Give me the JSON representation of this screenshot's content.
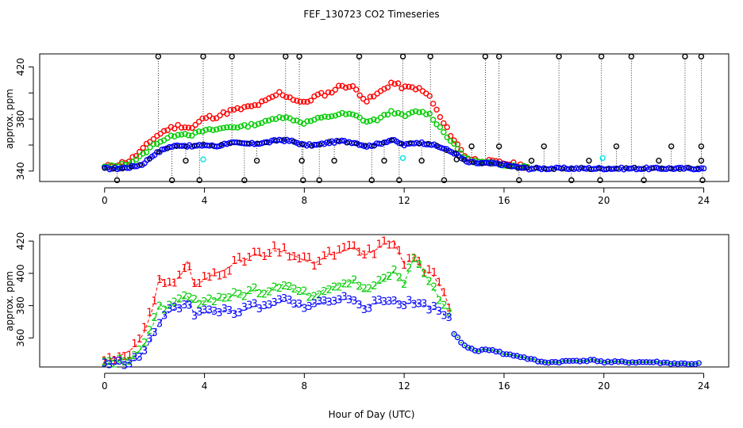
{
  "chart_data": [
    {
      "type": "scatter",
      "title": "FEF_130723  CO2 Timeseries",
      "xlabel": "",
      "ylabel": "approx. ppm",
      "xlim": [
        -2.6,
        25.0
      ],
      "ylim": [
        332,
        430
      ],
      "xticks": [
        0,
        4,
        8,
        12,
        16,
        20,
        24
      ],
      "yticks": [
        340,
        360,
        380,
        400,
        420
      ],
      "ytick_labels": [
        "340",
        "",
        "380",
        "",
        "420"
      ],
      "grid": false,
      "marker": "circle",
      "series": [
        {
          "color": "#000000",
          "note_role": "raw samples, ~every 0.12 h; values around ~341 ppm baseline with frequent spikes to 428 and dips to 333",
          "points_sparse": [
            [
              2.15,
              428
            ],
            [
              3.95,
              428
            ],
            [
              5.1,
              428
            ],
            [
              7.25,
              428
            ],
            [
              7.8,
              428
            ],
            [
              10.2,
              428
            ],
            [
              11.95,
              428
            ],
            [
              13.05,
              428
            ],
            [
              15.25,
              428
            ],
            [
              15.8,
              428
            ],
            [
              18.2,
              428
            ],
            [
              19.9,
              428
            ],
            [
              21.1,
              428
            ],
            [
              23.25,
              428
            ],
            [
              23.9,
              428
            ],
            [
              0.5,
              333
            ],
            [
              2.7,
              333
            ],
            [
              3.8,
              333
            ],
            [
              5.6,
              333
            ],
            [
              7.95,
              333
            ],
            [
              8.6,
              333
            ],
            [
              10.7,
              333
            ],
            [
              11.8,
              333
            ],
            [
              13.6,
              333
            ],
            [
              16.6,
              333
            ],
            [
              18.7,
              333
            ],
            [
              19.85,
              333
            ],
            [
              21.6,
              333
            ],
            [
              23.95,
              333
            ],
            [
              3.25,
              348
            ],
            [
              6.1,
              348
            ],
            [
              7.9,
              348
            ],
            [
              9.2,
              348
            ],
            [
              11.2,
              348
            ],
            [
              12.7,
              348
            ],
            [
              14.1,
              349
            ],
            [
              17.1,
              348
            ],
            [
              19.4,
              348
            ],
            [
              22.2,
              348
            ],
            [
              23.9,
              348
            ],
            [
              14.7,
              359
            ],
            [
              15.8,
              359
            ],
            [
              17.6,
              359
            ],
            [
              20.5,
              359
            ],
            [
              22.7,
              359
            ],
            [
              23.9,
              359
            ]
          ]
        },
        {
          "color": "#ff0000",
          "note_role": "series 1 (red)",
          "x": [
            0,
            0.5,
            1,
            1.5,
            2,
            2.5,
            3,
            3.5,
            4,
            4.5,
            5,
            5.5,
            6,
            6.5,
            7,
            7.5,
            8,
            8.5,
            9,
            9.5,
            10,
            10.5,
            11,
            11.5,
            12,
            12.5,
            13,
            13.5,
            14,
            14.5,
            15,
            15.5,
            16,
            16.5,
            17,
            18,
            19,
            20,
            21,
            22,
            23,
            24
          ],
          "values": [
            343,
            345,
            348,
            356,
            366,
            372,
            375,
            373,
            381,
            382,
            386,
            388,
            390,
            394,
            400,
            396,
            392,
            398,
            400,
            406,
            404,
            394,
            400,
            408,
            404,
            404,
            398,
            379,
            364,
            350,
            348,
            347,
            346,
            345,
            343,
            342,
            342,
            343,
            342,
            342,
            342,
            342
          ]
        },
        {
          "color": "#00cc00",
          "note_role": "series 2 (green)",
          "x": [
            0,
            0.5,
            1,
            1.5,
            2,
            2.5,
            3,
            3.5,
            4,
            4.5,
            5,
            5.5,
            6,
            6.5,
            7,
            7.5,
            8,
            8.5,
            9,
            9.5,
            10,
            10.5,
            11,
            11.5,
            12,
            12.5,
            13,
            13.5,
            14,
            14.5,
            15,
            15.5,
            16,
            16.5,
            17,
            18,
            19,
            20,
            21,
            22,
            23,
            24
          ],
          "values": [
            343,
            344,
            346,
            352,
            361,
            365,
            369,
            368,
            371,
            372,
            374,
            374,
            376,
            378,
            382,
            380,
            377,
            380,
            382,
            384,
            383,
            378,
            380,
            386,
            382,
            386,
            384,
            372,
            360,
            349,
            347,
            346,
            345,
            344,
            343,
            342,
            342,
            342,
            342,
            342,
            342,
            342
          ]
        },
        {
          "color": "#0000ff",
          "note_role": "series 3 (blue)",
          "x": [
            0,
            0.5,
            1,
            1.5,
            2,
            2.5,
            3,
            3.5,
            4,
            4.5,
            5,
            5.5,
            6,
            6.5,
            7,
            7.5,
            8,
            8.5,
            9,
            9.5,
            10,
            10.5,
            11,
            11.5,
            12,
            12.5,
            13,
            13.5,
            14,
            14.5,
            15,
            15.5,
            16,
            16.5,
            17,
            18,
            19,
            20,
            21,
            22,
            23,
            24
          ],
          "values": [
            342,
            342,
            343,
            345,
            353,
            358,
            360,
            359,
            360,
            359,
            362,
            361,
            361,
            362,
            364,
            363,
            360,
            360,
            362,
            363,
            362,
            359,
            361,
            364,
            360,
            362,
            361,
            358,
            354,
            347,
            346,
            346,
            345,
            343,
            342,
            342,
            342,
            342,
            342,
            342,
            342,
            342
          ]
        },
        {
          "color": "#00e5e5",
          "note_role": "cyan points",
          "points": [
            [
              3.95,
              349
            ],
            [
              11.95,
              350
            ],
            [
              19.95,
              350
            ]
          ]
        }
      ]
    },
    {
      "type": "line",
      "title": "",
      "xlabel": "Hour of Day (UTC)",
      "ylabel": "approx. ppm",
      "xlim": [
        -2.6,
        25.0
      ],
      "ylim": [
        342,
        424
      ],
      "xticks": [
        0,
        4,
        8,
        12,
        16,
        20,
        24
      ],
      "yticks": [
        360,
        380,
        400,
        420
      ],
      "grid": false,
      "categories_note": "markers are the series numbers 1, 2, 3",
      "series": [
        {
          "marker_text": "1",
          "color": "#ff0000",
          "x": [
            0,
            0.5,
            1,
            1.3,
            1.6,
            1.9,
            2.2,
            2.5,
            2.8,
            3.1,
            3.3,
            3.6,
            4.0,
            4.4,
            4.8,
            5.2,
            5.6,
            6.0,
            6.4,
            6.8,
            7.2,
            7.6,
            8.0,
            8.4,
            8.8,
            9.2,
            9.6,
            10.0,
            10.4,
            10.8,
            11.2,
            11.6,
            11.8,
            12.0,
            12.4,
            12.8,
            13.2,
            13.5,
            13.8
          ],
          "values": [
            346,
            348,
            352,
            356,
            364,
            377,
            398,
            392,
            395,
            400,
            408,
            392,
            396,
            400,
            402,
            406,
            408,
            412,
            410,
            414,
            413,
            411,
            408,
            406,
            410,
            412,
            414,
            416,
            411,
            414,
            418,
            420,
            412,
            406,
            410,
            402,
            398,
            390,
            380
          ]
        },
        {
          "marker_text": "2",
          "color": "#00cc00",
          "x": [
            0,
            0.5,
            1,
            1.3,
            1.6,
            1.9,
            2.2,
            2.5,
            2.8,
            3.1,
            3.3,
            3.6,
            4.0,
            4.4,
            4.8,
            5.2,
            5.6,
            6.0,
            6.4,
            6.8,
            7.2,
            7.6,
            8.0,
            8.4,
            8.8,
            9.2,
            9.6,
            10.0,
            10.4,
            10.8,
            11.2,
            11.6,
            12.0,
            12.4,
            12.8,
            13.2,
            13.5,
            13.8
          ],
          "values": [
            345,
            346,
            347,
            351,
            356,
            366,
            381,
            378,
            380,
            384,
            386,
            382,
            383,
            384,
            385,
            386,
            387,
            390,
            388,
            392,
            393,
            390,
            387,
            386,
            390,
            392,
            394,
            396,
            389,
            392,
            396,
            401,
            394,
            410,
            400,
            390,
            382,
            376
          ]
        },
        {
          "marker_text": "3",
          "color": "#0000ff",
          "x": [
            0,
            0.5,
            1,
            1.3,
            1.6,
            1.9,
            2.2,
            2.5,
            2.8,
            3.1,
            3.3,
            3.6,
            4.0,
            4.4,
            4.8,
            5.2,
            5.6,
            6.0,
            6.4,
            6.8,
            7.2,
            7.6,
            8.0,
            8.4,
            8.8,
            9.2,
            9.6,
            10.0,
            10.4,
            10.8,
            11.2,
            11.6,
            12.0,
            12.4,
            12.8,
            13.2,
            13.5,
            13.8
          ],
          "values": [
            344,
            344,
            345,
            347,
            352,
            360,
            370,
            375,
            378,
            380,
            383,
            375,
            376,
            376,
            377,
            376,
            377,
            380,
            378,
            381,
            384,
            380,
            380,
            381,
            382,
            383,
            384,
            384,
            379,
            381,
            382,
            383,
            381,
            382,
            380,
            378,
            376,
            372
          ]
        },
        {
          "marker_text": "",
          "color": "#0000ff",
          "note_role": "merged tail after 14 h (all series overlap, open circles)",
          "x": [
            14.0,
            14.5,
            15.0,
            15.5,
            16.0,
            16.5,
            17.0,
            17.5,
            18,
            19,
            19.8,
            20,
            21,
            22,
            23,
            23.8
          ],
          "values": [
            362,
            354,
            352,
            353,
            350,
            349,
            347,
            345,
            345,
            346,
            346,
            345,
            345,
            345,
            344,
            344
          ]
        }
      ]
    }
  ]
}
